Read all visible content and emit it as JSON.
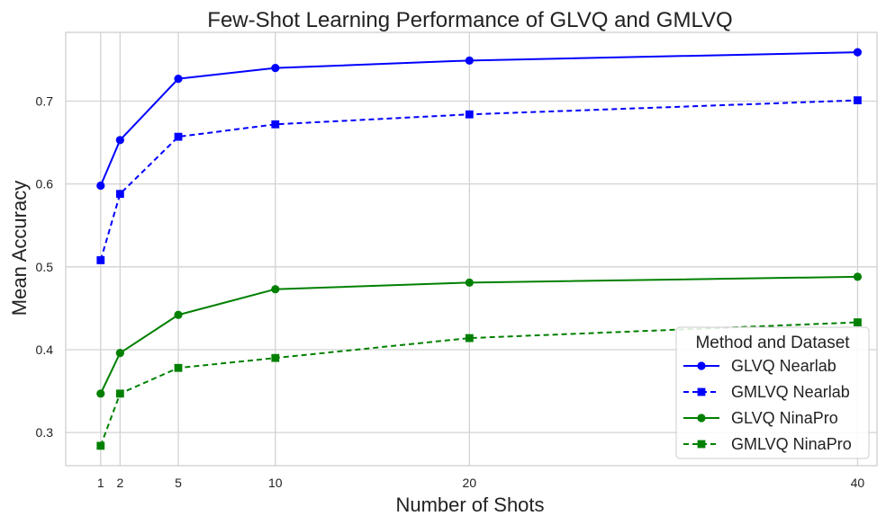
{
  "chart_data": {
    "type": "line",
    "title": "Few-Shot Learning Performance of GLVQ and GMLVQ",
    "xlabel": "Number of Shots",
    "ylabel": "Mean Accuracy",
    "x": [
      1,
      2,
      5,
      10,
      20,
      40
    ],
    "x_ticks": [
      1,
      2,
      5,
      10,
      20,
      40
    ],
    "y_ticks": [
      0.3,
      0.4,
      0.5,
      0.6,
      0.7
    ],
    "xlim": [
      -0.8,
      41
    ],
    "ylim": [
      0.26,
      0.783
    ],
    "grid": true,
    "legend": {
      "title": "Method and Dataset",
      "placement": "lower-right"
    },
    "series": [
      {
        "name": "GLVQ Nearlab",
        "values": [
          0.598,
          0.653,
          0.727,
          0.74,
          0.749,
          0.759
        ],
        "color": "#0000ff",
        "dash": "solid",
        "marker": "circle"
      },
      {
        "name": "GMLVQ Nearlab",
        "values": [
          0.508,
          0.588,
          0.657,
          0.672,
          0.684,
          0.701
        ],
        "color": "#0000ff",
        "dash": "dashed",
        "marker": "square"
      },
      {
        "name": "GLVQ NinaPro",
        "values": [
          0.347,
          0.396,
          0.442,
          0.473,
          0.481,
          0.488
        ],
        "color": "#008000",
        "dash": "solid",
        "marker": "circle"
      },
      {
        "name": "GMLVQ NinaPro",
        "values": [
          0.284,
          0.347,
          0.378,
          0.39,
          0.414,
          0.433
        ],
        "color": "#008000",
        "dash": "dashed",
        "marker": "square"
      }
    ]
  }
}
